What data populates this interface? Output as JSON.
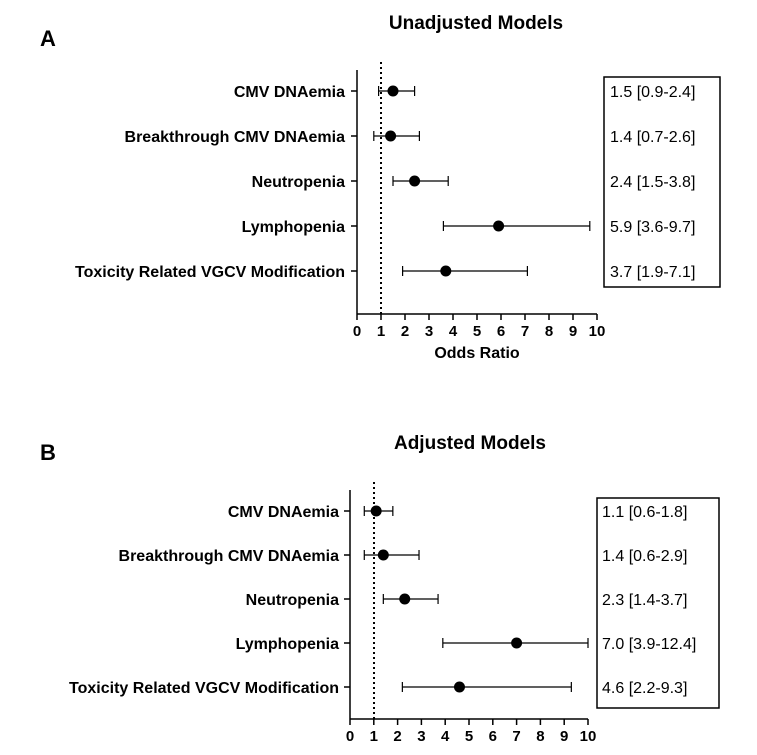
{
  "chart_data": [
    {
      "type": "forest",
      "panel_label": "A",
      "title": "Unadjusted Models",
      "xlabel": "Odds Ratio",
      "xlim": [
        0,
        10
      ],
      "xticks": [
        "0",
        "1",
        "2",
        "3",
        "4",
        "5",
        "6",
        "7",
        "8",
        "9",
        "10"
      ],
      "reference_line": 1,
      "rows": [
        {
          "label": "CMV DNAemia",
          "estimate": 1.5,
          "lower": 0.9,
          "upper": 2.4,
          "ci_text": "1.5 [0.9-2.4]"
        },
        {
          "label": "Breakthrough CMV DNAemia",
          "estimate": 1.4,
          "lower": 0.7,
          "upper": 2.6,
          "ci_text": "1.4 [0.7-2.6]"
        },
        {
          "label": "Neutropenia",
          "estimate": 2.4,
          "lower": 1.5,
          "upper": 3.8,
          "ci_text": "2.4 [1.5-3.8]"
        },
        {
          "label": "Lymphopenia",
          "estimate": 5.9,
          "lower": 3.6,
          "upper": 9.7,
          "ci_text": "5.9 [3.6-9.7]"
        },
        {
          "label": "Toxicity Related VGCV Modification",
          "estimate": 3.7,
          "lower": 1.9,
          "upper": 7.1,
          "ci_text": "3.7 [1.9-7.1]"
        }
      ]
    },
    {
      "type": "forest",
      "panel_label": "B",
      "title": "Adjusted Models",
      "xlabel": "",
      "xlim": [
        0,
        10
      ],
      "xticks": [
        "0",
        "1",
        "2",
        "3",
        "4",
        "5",
        "6",
        "7",
        "8",
        "9",
        "10"
      ],
      "reference_line": 1,
      "rows": [
        {
          "label": "CMV DNAemia",
          "estimate": 1.1,
          "lower": 0.6,
          "upper": 1.8,
          "ci_text": "1.1 [0.6-1.8]"
        },
        {
          "label": "Breakthrough CMV DNAemia",
          "estimate": 1.4,
          "lower": 0.6,
          "upper": 2.9,
          "ci_text": "1.4 [0.6-2.9]"
        },
        {
          "label": "Neutropenia",
          "estimate": 2.3,
          "lower": 1.4,
          "upper": 3.7,
          "ci_text": "2.3 [1.4-3.7]"
        },
        {
          "label": "Lymphopenia",
          "estimate": 7.0,
          "lower": 3.9,
          "upper": 12.4,
          "ci_text": "7.0 [3.9-12.4]"
        },
        {
          "label": "Toxicity Related VGCV Modification",
          "estimate": 4.6,
          "lower": 2.2,
          "upper": 9.3,
          "ci_text": "4.6 [2.2-9.3]"
        }
      ]
    }
  ]
}
